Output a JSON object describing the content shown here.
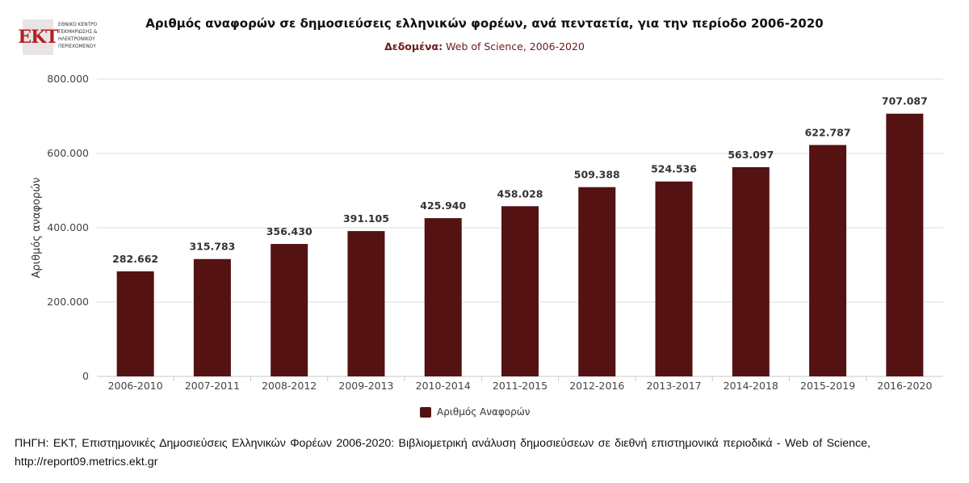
{
  "logo": {
    "abbr": "ΕΚΤ",
    "lines": [
      "ΕΘΝΙΚΟ ΚΕΝΤΡΟ",
      "ΤΕΚΜΗΡΙΩΣΗΣ &",
      "ΗΛΕΚΤΡΟΝΙΚΟΥ",
      "ΠΕΡΙΕΧΟΜΕΝΟΥ"
    ]
  },
  "header": {
    "title": "Αριθμός αναφορών σε δημοσιεύσεις ελληνικών φορέων, ανά πενταετία, για την περίοδο 2006-2020",
    "subtitle_label": "Δεδομένα:",
    "subtitle_value": " Web of Science, 2006-2020"
  },
  "chart_data": {
    "type": "bar",
    "categories": [
      "2006-2010",
      "2007-2011",
      "2008-2012",
      "2009-2013",
      "2010-2014",
      "2011-2015",
      "2012-2016",
      "2013-2017",
      "2014-2018",
      "2015-2019",
      "2016-2020"
    ],
    "series": [
      {
        "name": "Αριθμός Αναφορών",
        "values": [
          282662,
          315783,
          356430,
          391105,
          425940,
          458028,
          509388,
          524536,
          563097,
          622787,
          707087
        ],
        "labels": [
          "282.662",
          "315.783",
          "356.430",
          "391.105",
          "425.940",
          "458.028",
          "509.388",
          "524.536",
          "563.097",
          "622.787",
          "707.087"
        ]
      }
    ],
    "ylabel": "Αριθμός αναφορών",
    "xlabel": "",
    "ylim": [
      0,
      800000
    ],
    "yticks": [
      0,
      200000,
      400000,
      600000,
      800000
    ],
    "ytick_labels": [
      "0",
      "200.000",
      "400.000",
      "600.000",
      "800.000"
    ],
    "grid": true,
    "legend_position": "bottom-center",
    "bar_color": "#541213"
  },
  "legend": {
    "label": "Αριθμός Αναφορών"
  },
  "source": {
    "text": "ΠΗΓΗ: ΕΚΤ, Επιστημονικές Δημοσιεύσεις Ελληνικών Φορέων 2006-2020: Βιβλιομετρική ανάλυση δημοσιεύσεων σε διεθνή επιστημονικά περιοδικά - Web of Science, http://report09.metrics.ekt.gr"
  }
}
